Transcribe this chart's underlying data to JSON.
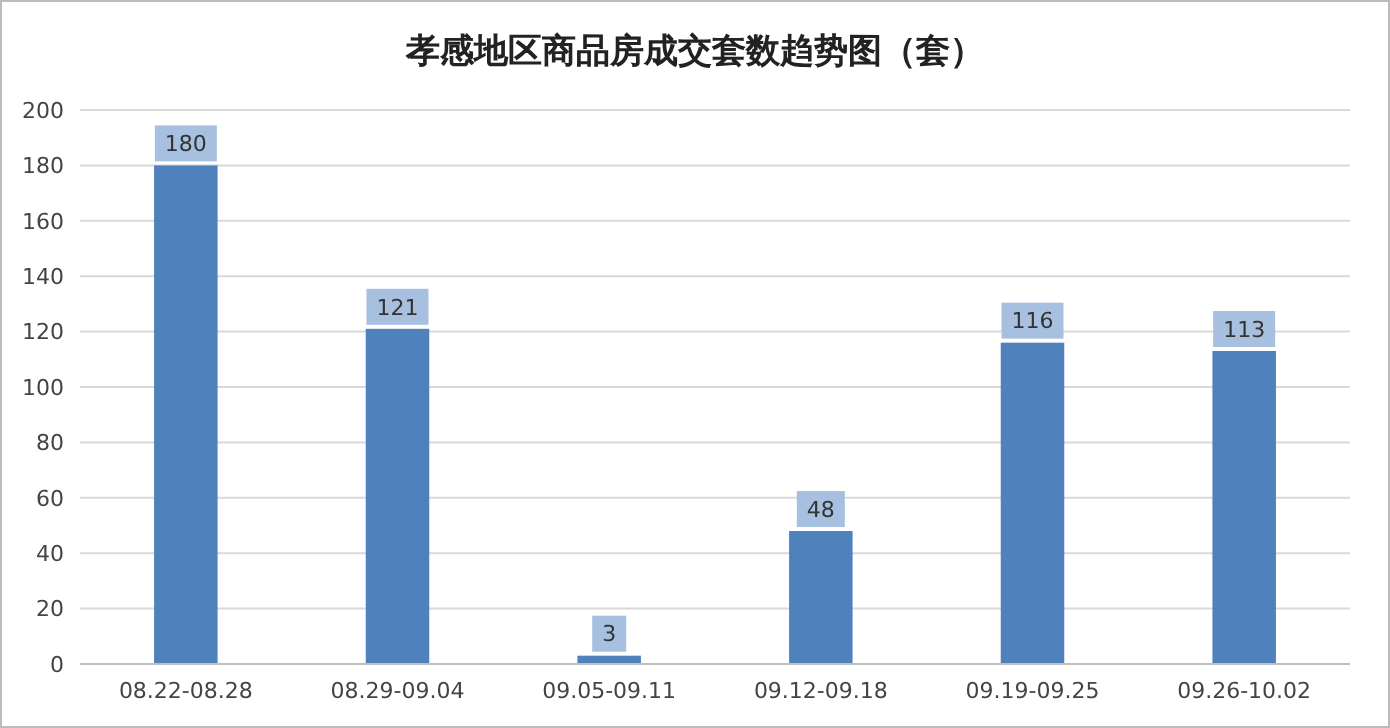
{
  "chart_data": {
    "type": "bar",
    "title": "孝感地区商品房成交套数趋势图（套）",
    "categories": [
      "08.22-08.28",
      "08.29-09.04",
      "09.05-09.11",
      "09.12-09.18",
      "09.19-09.25",
      "09.26-10.02"
    ],
    "values": [
      180,
      121,
      3,
      48,
      116,
      113
    ],
    "color": "#4f81bd",
    "ylim": [
      0,
      200
    ],
    "yticks": [
      0,
      20,
      40,
      60,
      80,
      100,
      120,
      140,
      160,
      180,
      200
    ],
    "grid": "y",
    "data_labels": true
  }
}
